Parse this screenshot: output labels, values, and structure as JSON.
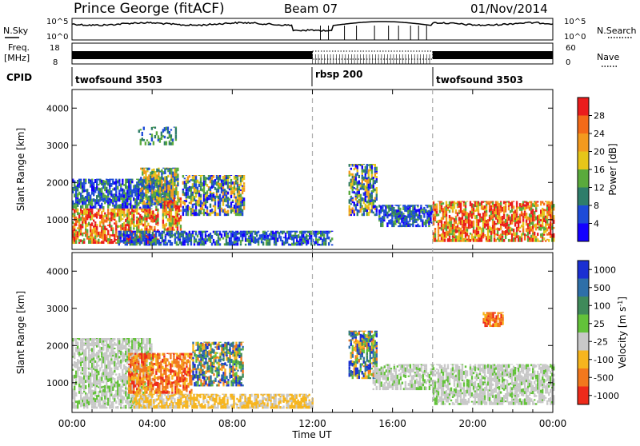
{
  "header": {
    "station": "Prince George (fitACF)",
    "beam": "Beam 07",
    "date": "01/Nov/2014"
  },
  "noise_panel": {
    "left_label": "N.Sky",
    "left_ticks": [
      "10^5",
      "10^0"
    ],
    "right_label": "N.Search",
    "right_ticks": [
      "10^5",
      "10^0"
    ]
  },
  "freq_panel": {
    "left_label_1": "Freq.",
    "left_label_2": "[MHz]",
    "left_ticks": [
      "18",
      "8"
    ],
    "right_label": "Nave",
    "right_ticks": [
      "60",
      "0"
    ]
  },
  "cpid": {
    "label": "CPID",
    "segments": [
      {
        "name": "twofsound 3503",
        "start_hour": 0
      },
      {
        "name": "rbsp 200",
        "start_hour": 12
      },
      {
        "name": "twofsound 3503",
        "start_hour": 18
      }
    ]
  },
  "x_axis": {
    "label": "Time UT",
    "ticks": [
      "00:00",
      "04:00",
      "08:00",
      "12:00",
      "16:00",
      "20:00",
      "00:00"
    ],
    "range_hours": [
      0,
      24
    ]
  },
  "chart_data": [
    {
      "type": "heatmap",
      "title": "",
      "xlabel": "Time UT",
      "ylabel": "Slant Range [km]",
      "ylim": [
        200,
        4500
      ],
      "yticks": [
        "1000",
        "2000",
        "3000",
        "4000"
      ],
      "colorbar": {
        "label": "Power [dB]",
        "ticks": [
          "4",
          "8",
          "12",
          "16",
          "20",
          "24",
          "28"
        ],
        "range": [
          0,
          30
        ],
        "colors": [
          "#1400ff",
          "#1d4bd8",
          "#2e7d6a",
          "#5aaa3c",
          "#e6c619",
          "#f39a1e",
          "#f36a18",
          "#ea1c1c"
        ]
      },
      "regions": [
        {
          "t0": 0.0,
          "t1": 4.3,
          "r0": 350,
          "r1": 1300,
          "level": "high"
        },
        {
          "t0": 0.0,
          "t1": 5.0,
          "r0": 1300,
          "r1": 2100,
          "level": "low"
        },
        {
          "t0": 3.4,
          "t1": 5.3,
          "r0": 1400,
          "r1": 2400,
          "level": "mid"
        },
        {
          "t0": 4.5,
          "t1": 5.4,
          "r0": 700,
          "r1": 1600,
          "level": "high"
        },
        {
          "t0": 5.5,
          "t1": 8.6,
          "r0": 1100,
          "r1": 2200,
          "level": "mixed"
        },
        {
          "t0": 2.3,
          "t1": 13.0,
          "r0": 300,
          "r1": 700,
          "level": "low"
        },
        {
          "t0": 13.8,
          "t1": 15.2,
          "r0": 1100,
          "r1": 2500,
          "level": "mixed"
        },
        {
          "t0": 15.3,
          "t1": 18.0,
          "r0": 800,
          "r1": 1400,
          "level": "low"
        },
        {
          "t0": 18.0,
          "t1": 24.0,
          "r0": 400,
          "r1": 1500,
          "level": "high"
        },
        {
          "t0": 3.3,
          "t1": 5.2,
          "r0": 3000,
          "r1": 3500,
          "level": "scatter"
        }
      ]
    },
    {
      "type": "heatmap",
      "title": "",
      "xlabel": "Time UT",
      "ylabel": "Slant Range [km]",
      "ylim": [
        200,
        4500
      ],
      "yticks": [
        "1000",
        "2000",
        "3000",
        "4000"
      ],
      "colorbar": {
        "label": "Velocity [m s^-1]",
        "ticks": [
          "1000",
          "500",
          "100",
          "25",
          "-25",
          "-100",
          "-500",
          "-1000"
        ],
        "range": [
          -1000,
          1000
        ],
        "colors": [
          "#1a2fd2",
          "#2e6fa8",
          "#3f8a5a",
          "#63c23a",
          "#c8c8c8",
          "#f6b51e",
          "#f2781d",
          "#ee2a1a"
        ]
      },
      "regions": [
        {
          "t0": 0.0,
          "t1": 4.0,
          "r0": 300,
          "r1": 2200,
          "level": "ground"
        },
        {
          "t0": 2.8,
          "t1": 6.0,
          "r0": 700,
          "r1": 1800,
          "level": "negative"
        },
        {
          "t0": 6.0,
          "t1": 8.5,
          "r0": 900,
          "r1": 2100,
          "level": "mixed"
        },
        {
          "t0": 3.0,
          "t1": 12.0,
          "r0": 300,
          "r1": 700,
          "level": "slight-negative"
        },
        {
          "t0": 13.8,
          "t1": 15.2,
          "r0": 1100,
          "r1": 2400,
          "level": "mixed"
        },
        {
          "t0": 15.0,
          "t1": 18.0,
          "r0": 800,
          "r1": 1500,
          "level": "ground"
        },
        {
          "t0": 18.0,
          "t1": 24.0,
          "r0": 400,
          "r1": 1500,
          "level": "ground"
        },
        {
          "t0": 20.5,
          "t1": 21.5,
          "r0": 2500,
          "r1": 2900,
          "level": "negative"
        }
      ]
    }
  ]
}
